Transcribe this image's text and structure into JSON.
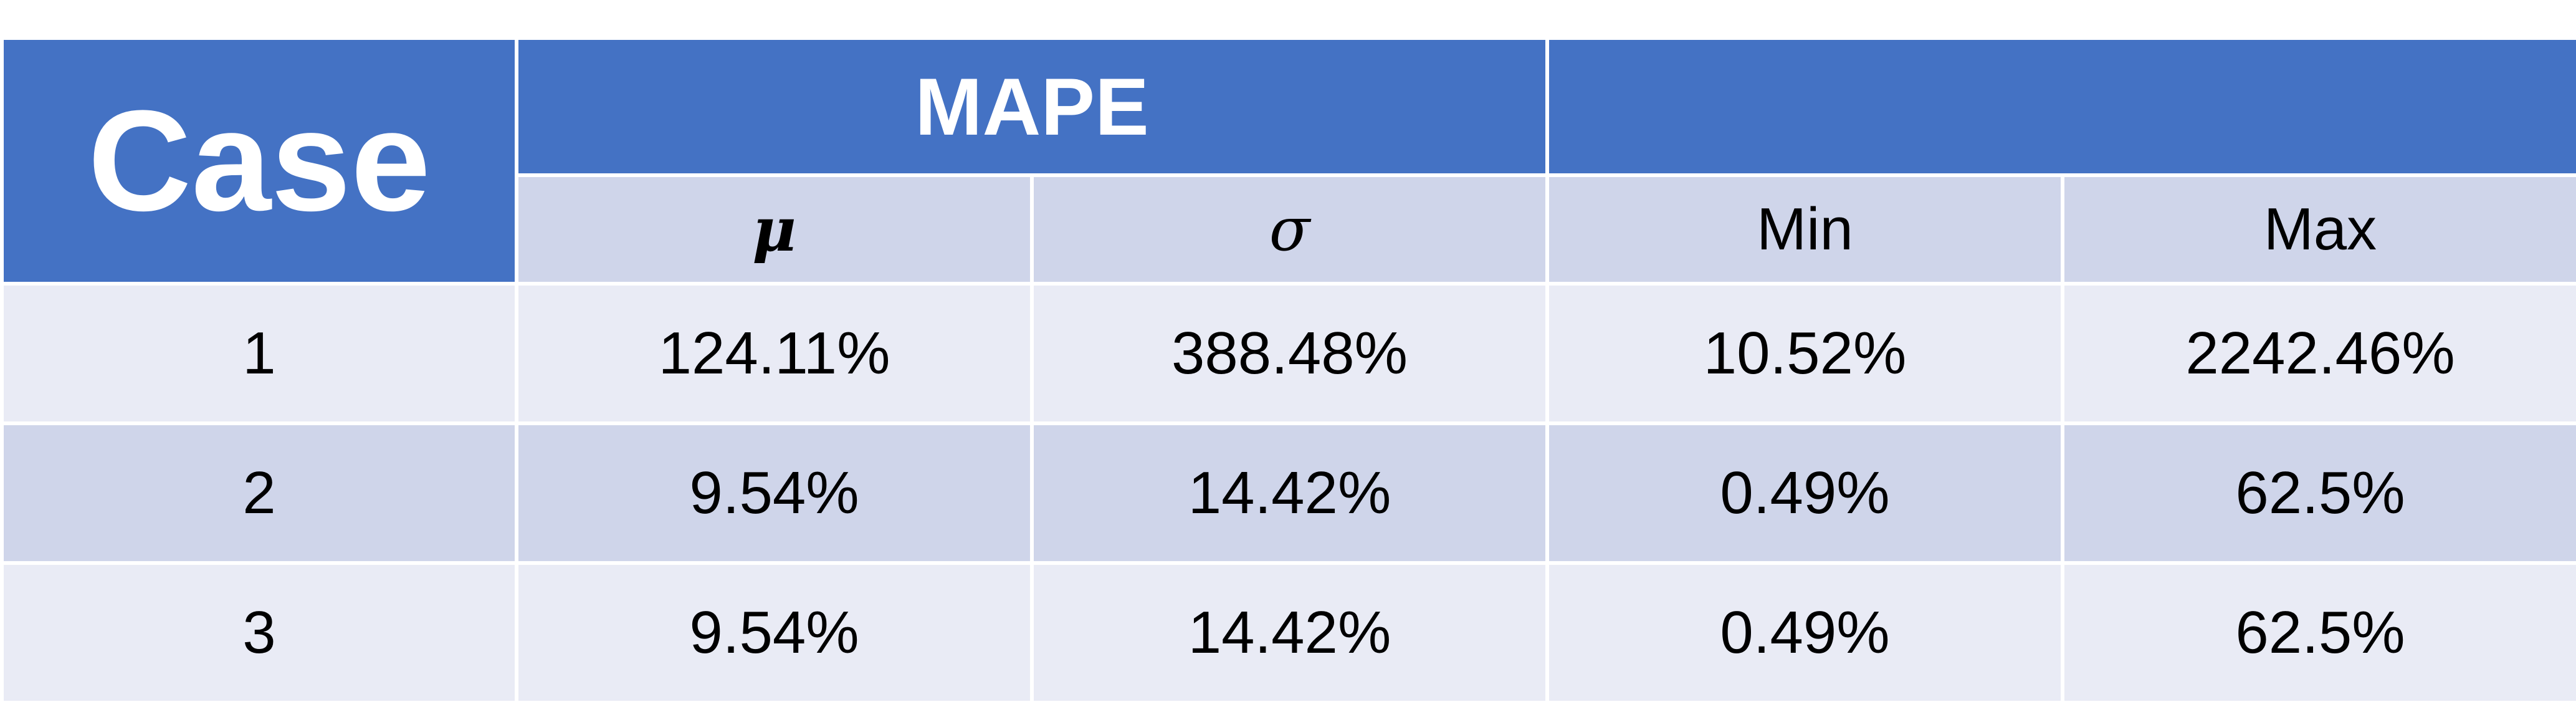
{
  "table": {
    "header": {
      "case_label": "Case",
      "group_label": "MAPE",
      "group_label_2": "",
      "columns": [
        "μ",
        "σ",
        "Min",
        "Max"
      ]
    },
    "rows": [
      {
        "case": "1",
        "mu": "124.11%",
        "sigma": "388.48%",
        "min": "10.52%",
        "max": "2242.46%"
      },
      {
        "case": "2",
        "mu": "9.54%",
        "sigma": "14.42%",
        "min": "0.49%",
        "max": "62.5%"
      },
      {
        "case": "3",
        "mu": "9.54%",
        "sigma": "14.42%",
        "min": "0.49%",
        "max": "62.5%"
      }
    ],
    "colors": {
      "header_blue": "#4472c4",
      "subheader": "#cfd5ea",
      "row_light": "#e9ebf5",
      "row_dark": "#cfd5ea"
    }
  }
}
